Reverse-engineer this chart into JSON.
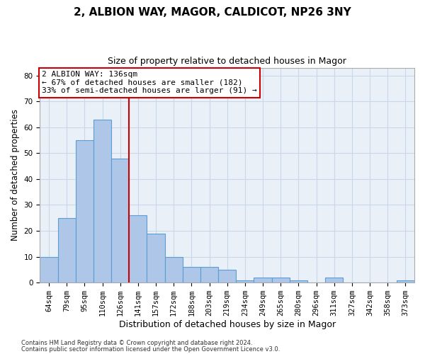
{
  "title": "2, ALBION WAY, MAGOR, CALDICOT, NP26 3NY",
  "subtitle": "Size of property relative to detached houses in Magor",
  "xlabel": "Distribution of detached houses by size in Magor",
  "ylabel": "Number of detached properties",
  "categories": [
    "64sqm",
    "79sqm",
    "95sqm",
    "110sqm",
    "126sqm",
    "141sqm",
    "157sqm",
    "172sqm",
    "188sqm",
    "203sqm",
    "219sqm",
    "234sqm",
    "249sqm",
    "265sqm",
    "280sqm",
    "296sqm",
    "311sqm",
    "327sqm",
    "342sqm",
    "358sqm",
    "373sqm"
  ],
  "values": [
    10,
    25,
    55,
    63,
    48,
    26,
    19,
    10,
    6,
    6,
    5,
    1,
    2,
    2,
    1,
    0,
    2,
    0,
    0,
    0,
    1
  ],
  "bar_color": "#aec6e8",
  "bar_edge_color": "#5a9fd4",
  "vline_x": 4.5,
  "vline_color": "#cc0000",
  "annotation_line1": "2 ALBION WAY: 136sqm",
  "annotation_line2": "← 67% of detached houses are smaller (182)",
  "annotation_line3": "33% of semi-detached houses are larger (91) →",
  "annotation_box_color": "#cc0000",
  "ylim": [
    0,
    83
  ],
  "yticks": [
    0,
    10,
    20,
    30,
    40,
    50,
    60,
    70,
    80
  ],
  "grid_color": "#c8d8e8",
  "background_color": "#eaf0f8",
  "footer_line1": "Contains HM Land Registry data © Crown copyright and database right 2024.",
  "footer_line2": "Contains public sector information licensed under the Open Government Licence v3.0.",
  "title_fontsize": 11,
  "subtitle_fontsize": 9,
  "tick_fontsize": 7.5,
  "ylabel_fontsize": 8.5,
  "xlabel_fontsize": 9,
  "annotation_fontsize": 8,
  "footer_fontsize": 6
}
